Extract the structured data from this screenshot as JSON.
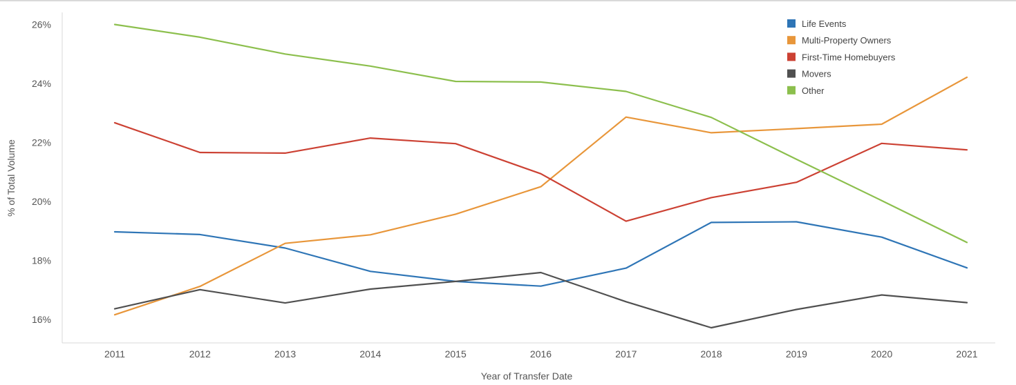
{
  "chart_data": {
    "type": "line",
    "title": "",
    "xlabel": "Year of Transfer Date",
    "ylabel": "% of Total Volume",
    "x": [
      "2011",
      "2012",
      "2013",
      "2014",
      "2015",
      "2016",
      "2017",
      "2018",
      "2019",
      "2020",
      "2021"
    ],
    "y_ticks": [
      "16%",
      "18%",
      "20%",
      "22%",
      "24%",
      "26%"
    ],
    "ylim": [
      15.2,
      26.4
    ],
    "grid": false,
    "legend_position": "top-right",
    "series": [
      {
        "name": "Life Events",
        "color": "#2e75b6",
        "values": [
          18.97,
          18.88,
          18.42,
          17.63,
          17.29,
          17.13,
          17.74,
          19.29,
          19.31,
          18.79,
          17.75
        ]
      },
      {
        "name": "Multi-Property Owners",
        "color": "#e8963a",
        "values": [
          16.16,
          17.12,
          18.58,
          18.87,
          19.57,
          20.5,
          22.86,
          22.33,
          22.47,
          22.62,
          24.21
        ]
      },
      {
        "name": "First-Time Homebuyers",
        "color": "#cc4133",
        "values": [
          22.67,
          21.66,
          21.64,
          22.15,
          21.96,
          20.94,
          19.33,
          20.13,
          20.65,
          21.97,
          21.75
        ]
      },
      {
        "name": "Movers",
        "color": "#505050",
        "values": [
          16.36,
          17.01,
          16.56,
          17.03,
          17.29,
          17.59,
          16.6,
          15.72,
          16.34,
          16.83,
          16.57
        ]
      },
      {
        "name": "Other",
        "color": "#8cbf4d",
        "values": [
          26.0,
          25.57,
          25.0,
          24.59,
          24.07,
          24.05,
          23.73,
          22.85,
          21.43,
          20.03,
          18.61
        ]
      }
    ]
  }
}
